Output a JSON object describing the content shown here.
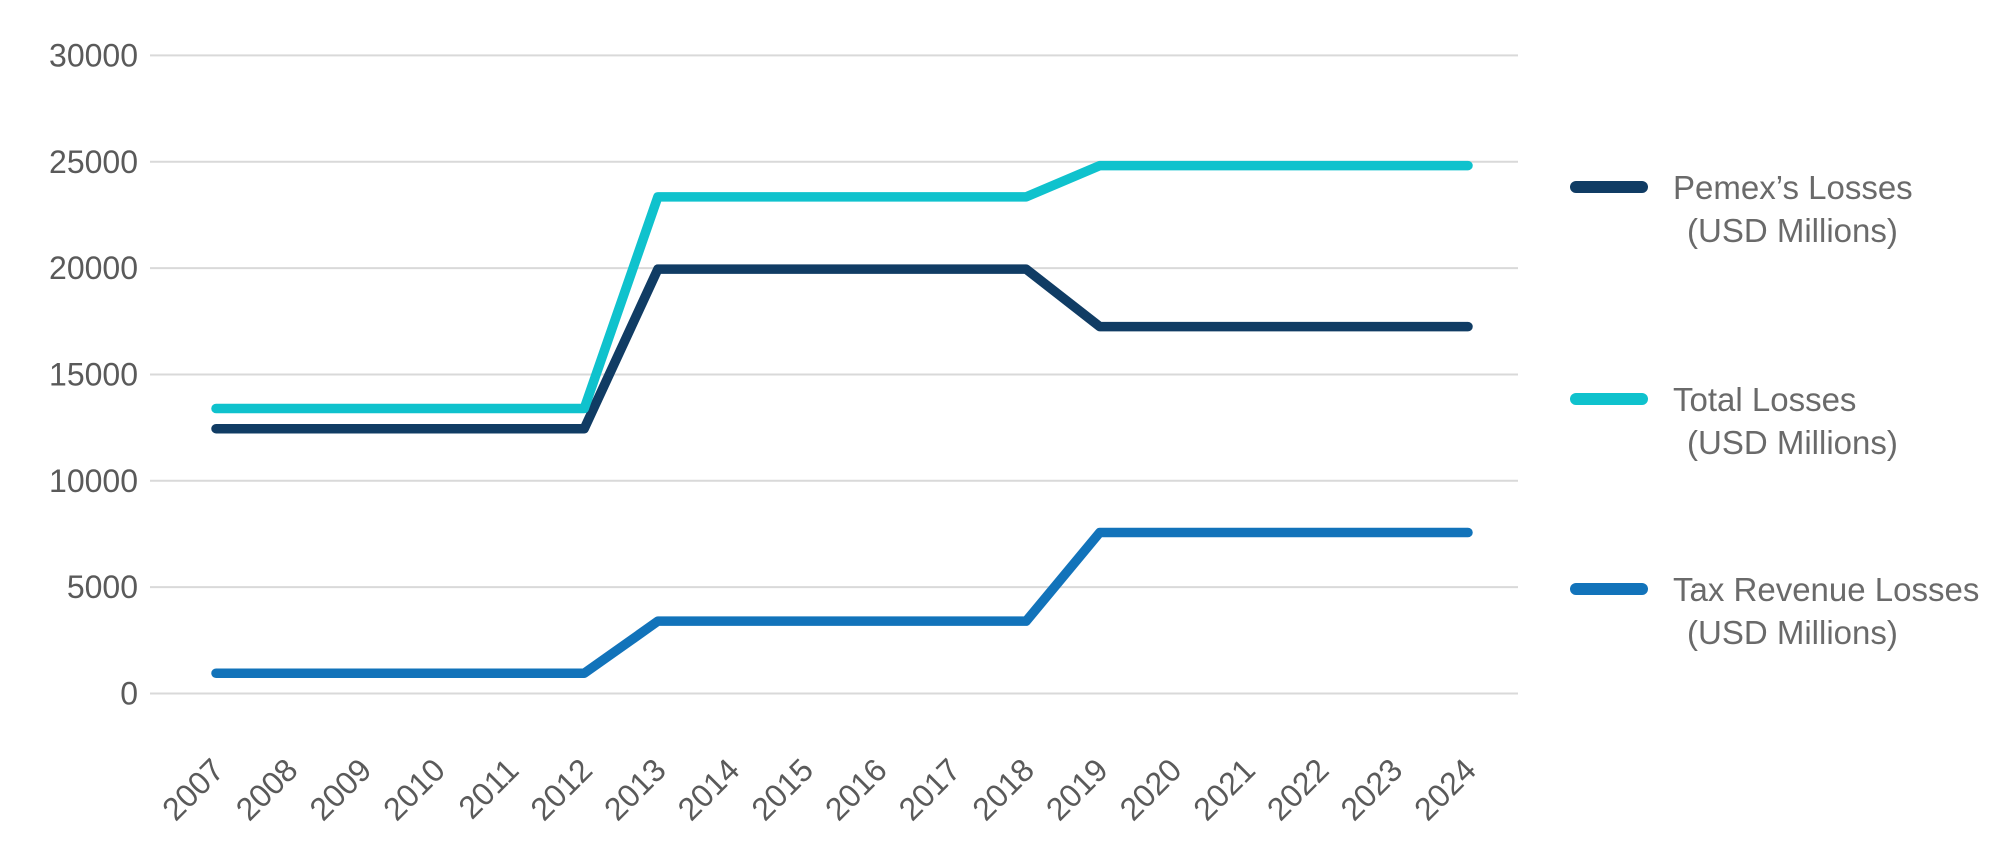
{
  "chart_data": {
    "type": "line",
    "categories": [
      "2007",
      "2008",
      "2009",
      "2010",
      "2011",
      "2012",
      "2013",
      "2014",
      "2015",
      "2016",
      "2017",
      "2018",
      "2019",
      "2020",
      "2021",
      "2022",
      "2023",
      "2024"
    ],
    "series": [
      {
        "id": "pemex-losses",
        "name": "Pemex’s Losses (USD Millions)",
        "color": "#103c64",
        "values": [
          12450,
          12450,
          12450,
          12450,
          12450,
          12450,
          19950,
          19950,
          19950,
          19950,
          19950,
          19950,
          17250,
          17250,
          17250,
          17250,
          17250,
          17250
        ]
      },
      {
        "id": "total-losses",
        "name": "Total Losses (USD Millions)",
        "color": "#0fc2cd",
        "values": [
          13400,
          13400,
          13400,
          13400,
          13400,
          13400,
          23350,
          23350,
          23350,
          23350,
          23350,
          23350,
          24820,
          24820,
          24820,
          24820,
          24820,
          24820
        ]
      },
      {
        "id": "tax-revenue-losses",
        "name": "Tax Revenue Losses (USD Millions)",
        "color": "#1273ba",
        "values": [
          950,
          950,
          950,
          950,
          950,
          950,
          3400,
          3400,
          3400,
          3400,
          3400,
          3400,
          7570,
          7570,
          7570,
          7570,
          7570,
          7570
        ]
      }
    ],
    "title": "",
    "xlabel": "",
    "ylabel": "",
    "ylim": [
      0,
      30000
    ],
    "ytick_step": 5000,
    "y_ticks": [
      "0",
      "5000",
      "10000",
      "15000",
      "20000",
      "25000",
      "30000"
    ],
    "grid": true,
    "legend_position": "right",
    "x_tick_rotation": -45
  },
  "legend": {
    "items": [
      {
        "line1": "Pemex’s Losses",
        "line2": "(USD Millions)",
        "color": "#103c64"
      },
      {
        "line1": "Total Losses",
        "line2": "(USD Millions)",
        "color": "#0fc2cd"
      },
      {
        "line1": "Tax Revenue Losses",
        "line2": "(USD Millions)",
        "color": "#1273ba"
      }
    ]
  },
  "colors": {
    "grid": "#d9d9d9",
    "axis_text": "#5a5a5a",
    "legend_text": "#6a6a6a",
    "background": "#ffffff"
  }
}
